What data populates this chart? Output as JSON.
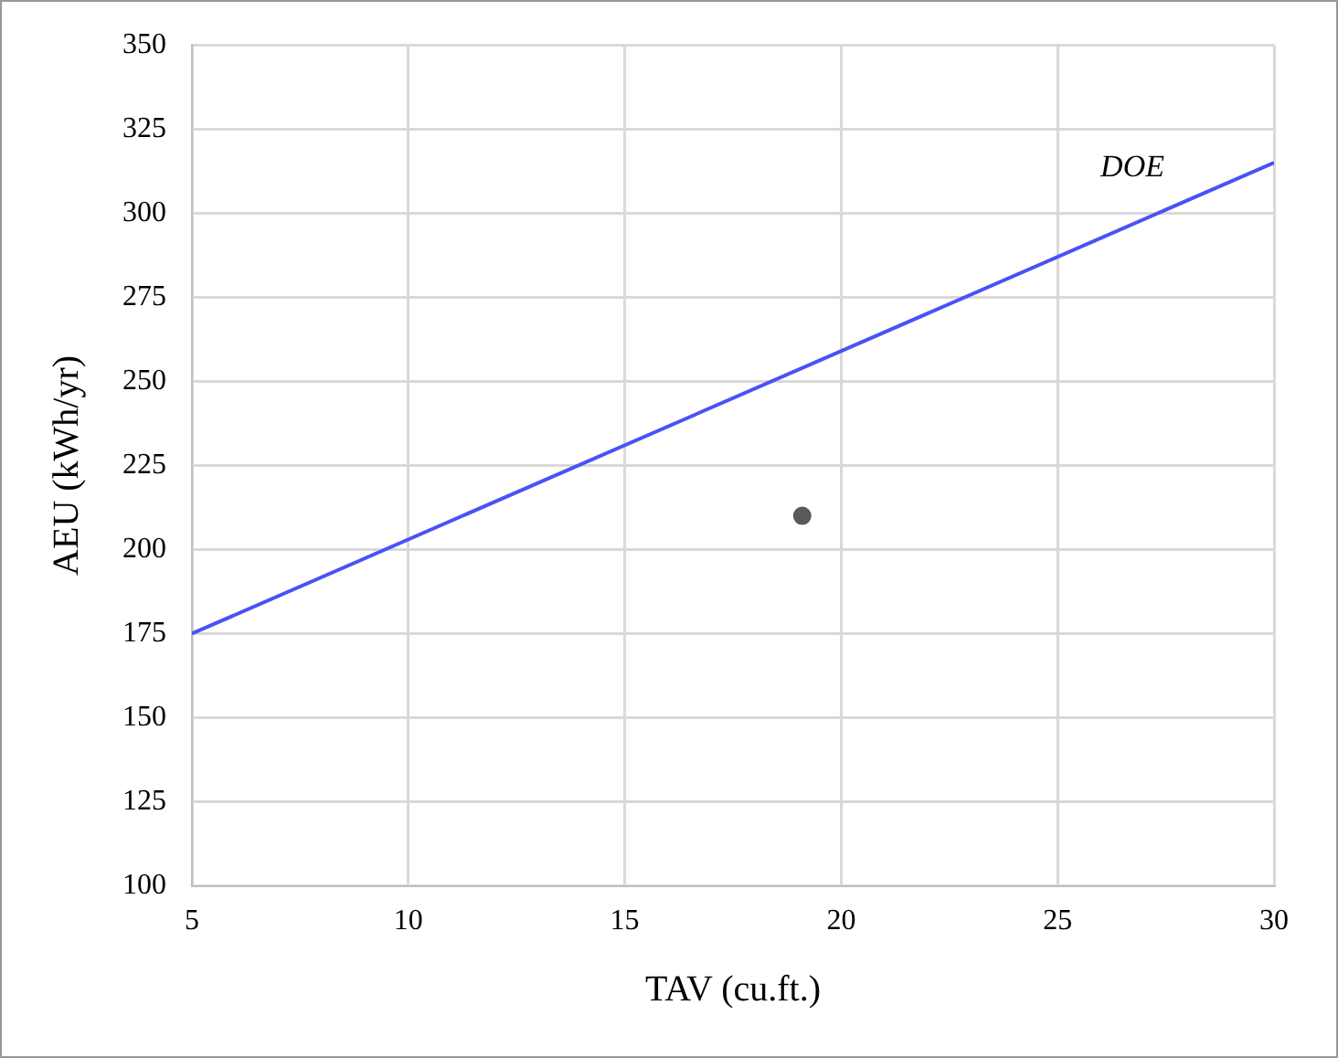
{
  "chart_data": {
    "type": "scatter",
    "xlabel": "TAV (cu.ft.)",
    "ylabel": "AEU (kWh/yr)",
    "xlim": [
      5,
      30
    ],
    "xticks": [
      5,
      10,
      15,
      20,
      25,
      30
    ],
    "ylim": [
      100,
      350
    ],
    "yticks": [
      100,
      125,
      150,
      175,
      200,
      225,
      250,
      275,
      300,
      325,
      350
    ],
    "grid": true,
    "legend": false,
    "series": [
      {
        "type": "line",
        "name": "DOE",
        "x": [
          5,
          30
        ],
        "values": [
          175,
          315
        ],
        "color": "#4a52f5",
        "marker": "none",
        "line_style": "solid"
      },
      {
        "x": [
          19.1
        ],
        "values": [
          210
        ],
        "color": "#595959",
        "marker": "circle"
      }
    ]
  }
}
